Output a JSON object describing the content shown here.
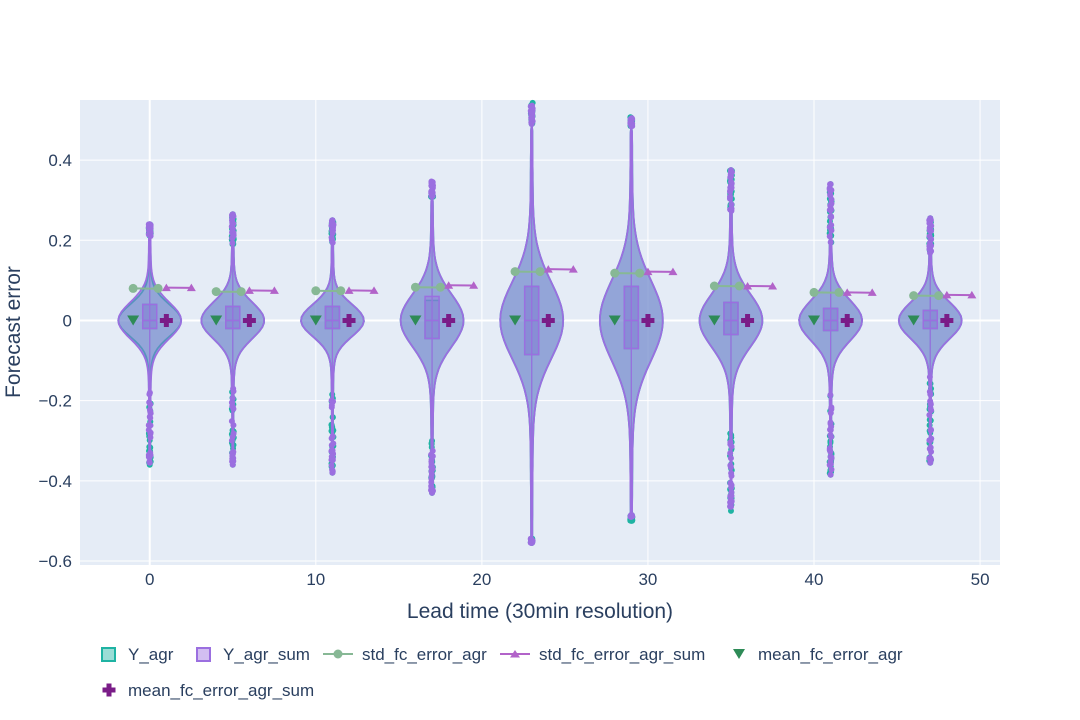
{
  "chart_data": {
    "type": "violin",
    "xlabel": "Lead time (30min resolution)",
    "ylabel": "Forecast error",
    "xlim": [
      -4.2,
      51.2
    ],
    "ylim": [
      -0.61,
      0.55
    ],
    "x_ticks": [
      0,
      10,
      20,
      30,
      40,
      50
    ],
    "x_tick_labels": [
      "0",
      "10",
      "20",
      "30",
      "40",
      "50"
    ],
    "y_ticks": [
      -0.6,
      -0.4,
      -0.2,
      0,
      0.2,
      0.4
    ],
    "y_tick_labels": [
      "−0.6",
      "−0.4",
      "−0.2",
      "0",
      "0.2",
      "0.4"
    ],
    "grid": true,
    "legend_position": "bottom",
    "colors": {
      "Y_agr": "#1fb3a3",
      "Y_agr_sum": "#9b6fe0",
      "std_fc_error_agr": "#87b895",
      "std_fc_error_agr_sum": "#b263c9",
      "mean_fc_error_agr": "#2e8b57",
      "mean_fc_error_agr_sum": "#7a1c87"
    },
    "legend": [
      {
        "label": "Y_agr",
        "symbol": "box-agr"
      },
      {
        "label": "Y_agr_sum",
        "symbol": "box-sum"
      },
      {
        "label": "std_fc_error_agr",
        "symbol": "line-circle"
      },
      {
        "label": "std_fc_error_agr_sum",
        "symbol": "line-triangle"
      },
      {
        "label": "mean_fc_error_agr",
        "symbol": "triangle-down"
      },
      {
        "label": "mean_fc_error_agr_sum",
        "symbol": "cross"
      }
    ],
    "lead_times": [
      0,
      5,
      11,
      17,
      23,
      29,
      35,
      41,
      47
    ],
    "violins": {
      "Y_agr": [
        {
          "x": 0,
          "min": -0.36,
          "max": 0.24,
          "q1": -0.02,
          "median": 0,
          "q3": 0.04,
          "spread": 0.04
        },
        {
          "x": 5,
          "min": -0.36,
          "max": 0.265,
          "q1": -0.02,
          "median": 0,
          "q3": 0.035,
          "spread": 0.045
        },
        {
          "x": 11,
          "min": -0.38,
          "max": 0.25,
          "q1": -0.02,
          "median": 0,
          "q3": 0.035,
          "spread": 0.04
        },
        {
          "x": 17,
          "min": -0.43,
          "max": 0.31,
          "q1": -0.045,
          "median": 0,
          "q3": 0.05,
          "spread": 0.065
        },
        {
          "x": 23,
          "min": -0.555,
          "max": 0.49,
          "q1": -0.085,
          "median": 0,
          "q3": 0.085,
          "spread": 0.095
        },
        {
          "x": 29,
          "min": -0.5,
          "max": 0.485,
          "q1": -0.07,
          "median": 0,
          "q3": 0.085,
          "spread": 0.1
        },
        {
          "x": 35,
          "min": -0.475,
          "max": 0.375,
          "q1": -0.035,
          "median": 0,
          "q3": 0.045,
          "spread": 0.065
        },
        {
          "x": 41,
          "min": -0.385,
          "max": 0.34,
          "q1": -0.025,
          "median": 0,
          "q3": 0.03,
          "spread": 0.05
        },
        {
          "x": 47,
          "min": -0.355,
          "max": 0.255,
          "q1": -0.02,
          "median": 0,
          "q3": 0.025,
          "spread": 0.045
        }
      ],
      "Y_agr_sum": [
        {
          "x": 0,
          "min": -0.355,
          "max": 0.24,
          "q1": -0.02,
          "median": 0,
          "q3": 0.04,
          "spread": 0.045
        },
        {
          "x": 5,
          "min": -0.36,
          "max": 0.265,
          "q1": -0.02,
          "median": 0,
          "q3": 0.035,
          "spread": 0.045
        },
        {
          "x": 11,
          "min": -0.38,
          "max": 0.25,
          "q1": -0.02,
          "median": 0,
          "q3": 0.035,
          "spread": 0.04
        },
        {
          "x": 17,
          "min": -0.43,
          "max": 0.31,
          "q1": -0.045,
          "median": 0,
          "q3": 0.06,
          "spread": 0.065
        },
        {
          "x": 23,
          "min": -0.555,
          "max": 0.49,
          "q1": -0.085,
          "median": 0,
          "q3": 0.085,
          "spread": 0.095
        },
        {
          "x": 29,
          "min": -0.49,
          "max": 0.485,
          "q1": -0.07,
          "median": 0,
          "q3": 0.085,
          "spread": 0.1
        },
        {
          "x": 35,
          "min": -0.465,
          "max": 0.375,
          "q1": -0.035,
          "median": 0,
          "q3": 0.045,
          "spread": 0.065
        },
        {
          "x": 41,
          "min": -0.385,
          "max": 0.34,
          "q1": -0.025,
          "median": 0,
          "q3": 0.03,
          "spread": 0.05
        },
        {
          "x": 47,
          "min": -0.355,
          "max": 0.255,
          "q1": -0.02,
          "median": 0,
          "q3": 0.025,
          "spread": 0.045
        }
      ]
    },
    "std_fc_error_agr": {
      "x": [
        -1,
        4,
        10,
        16,
        22,
        28,
        34,
        40,
        46
      ],
      "y": [
        0.08,
        0.072,
        0.074,
        0.083,
        0.122,
        0.118,
        0.086,
        0.07,
        0.062
      ]
    },
    "std_fc_error_agr_sum": {
      "x": [
        1,
        6,
        12,
        18,
        24,
        30,
        36,
        42,
        48
      ],
      "y": [
        0.082,
        0.075,
        0.075,
        0.088,
        0.128,
        0.122,
        0.086,
        0.07,
        0.064
      ]
    },
    "mean_fc_error_agr": {
      "x": [
        -1,
        4,
        10,
        16,
        22,
        28,
        34,
        40,
        46
      ],
      "y": [
        0,
        0,
        0,
        0,
        0,
        0,
        0,
        0,
        0
      ]
    },
    "mean_fc_error_agr_sum": {
      "x": [
        1,
        6,
        12,
        18,
        24,
        30,
        36,
        42,
        48
      ],
      "y": [
        0,
        0,
        0,
        0,
        0,
        0,
        0,
        0,
        0
      ]
    }
  }
}
